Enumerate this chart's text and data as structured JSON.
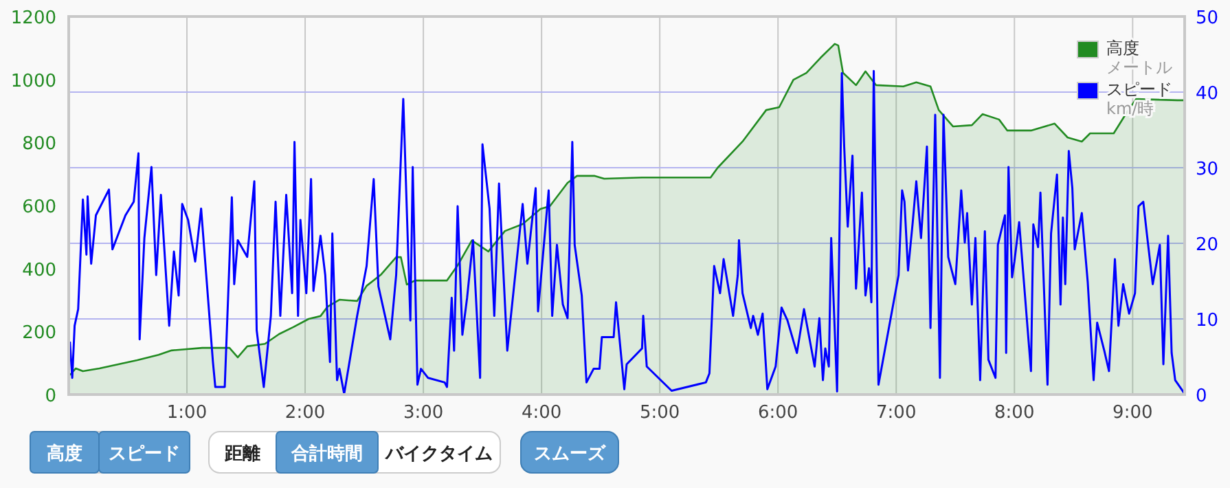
{
  "chart_data": {
    "type": "line",
    "xlim": [
      0,
      9.44
    ],
    "ylim": [
      0,
      1200
    ],
    "y2lim": [
      0,
      50
    ],
    "xticks": [
      {
        "value": 1,
        "label": "1:00"
      },
      {
        "value": 2,
        "label": "2:00"
      },
      {
        "value": 3,
        "label": "3:00"
      },
      {
        "value": 4,
        "label": "4:00"
      },
      {
        "value": 5,
        "label": "5:00"
      },
      {
        "value": 6,
        "label": "6:00"
      },
      {
        "value": 7,
        "label": "7:00"
      },
      {
        "value": 8,
        "label": "8:00"
      },
      {
        "value": 9,
        "label": "9:00"
      }
    ],
    "yticks": [
      0,
      200,
      400,
      600,
      800,
      1000,
      1200
    ],
    "y2ticks": [
      0,
      10,
      20,
      30,
      40,
      50
    ],
    "grid": true,
    "legend": "top right",
    "annotations": [
      "高度",
      "スピード",
      "距離",
      "合計時間",
      "バイクタイム",
      "スムーズ"
    ],
    "series": [
      {
        "name": "高度メートル",
        "type": "area",
        "color": "#228b22",
        "x": [
          0.01,
          0.06,
          0.12,
          0.26,
          0.58,
          0.76,
          0.87,
          1.13,
          1.36,
          1.43,
          1.51,
          1.66,
          1.78,
          1.9,
          2.03,
          2.13,
          2.19,
          2.29,
          2.44,
          2.52,
          2.64,
          2.77,
          2.81,
          2.86,
          2.93,
          3.2,
          3.29,
          3.41,
          3.55,
          3.69,
          3.84,
          3.99,
          4.07,
          4.22,
          4.3,
          4.45,
          4.53,
          4.85,
          5.43,
          5.49,
          5.7,
          5.9,
          6.01,
          6.13,
          6.24,
          6.36,
          6.48,
          6.51,
          6.55,
          6.66,
          6.74,
          6.83,
          7.06,
          7.17,
          7.29,
          7.36,
          7.48,
          7.64,
          7.73,
          7.87,
          7.94,
          8.14,
          8.34,
          8.45,
          8.57,
          8.64,
          8.84,
          8.95,
          9.03,
          9.38,
          9.44
        ],
        "values": [
          62,
          83,
          74,
          83,
          109,
          126,
          140,
          148,
          148,
          118,
          153,
          161,
          192,
          214,
          240,
          249,
          279,
          301,
          297,
          345,
          380,
          436,
          436,
          349,
          362,
          362,
          410,
          489,
          454,
          519,
          541,
          589,
          598,
          672,
          694,
          694,
          685,
          689,
          689,
          720,
          803,
          903,
          912,
          999,
          1021,
          1069,
          1113,
          1108,
          1021,
          982,
          1026,
          982,
          978,
          991,
          978,
          903,
          851,
          855,
          890,
          873,
          838,
          838,
          860,
          816,
          803,
          829,
          829,
          895,
          938,
          934,
          934
        ]
      },
      {
        "name": "スピードkm/時",
        "axis": "y2",
        "color": "#0000ff",
        "x": [
          0.01,
          0.03,
          0.05,
          0.08,
          0.12,
          0.15,
          0.16,
          0.19,
          0.23,
          0.34,
          0.37,
          0.48,
          0.55,
          0.59,
          0.6,
          0.64,
          0.7,
          0.74,
          0.78,
          0.85,
          0.89,
          0.93,
          0.96,
          1.01,
          1.07,
          1.12,
          1.22,
          1.24,
          1.32,
          1.38,
          1.4,
          1.43,
          1.51,
          1.57,
          1.59,
          1.65,
          1.71,
          1.75,
          1.79,
          1.84,
          1.89,
          1.91,
          1.94,
          1.96,
          2.01,
          2.05,
          2.07,
          2.13,
          2.17,
          2.21,
          2.23,
          2.27,
          2.29,
          2.33,
          2.44,
          2.52,
          2.58,
          2.62,
          2.72,
          2.77,
          2.83,
          2.89,
          2.91,
          2.95,
          2.98,
          3.04,
          3.18,
          3.2,
          3.24,
          3.26,
          3.29,
          3.33,
          3.37,
          3.42,
          3.48,
          3.5,
          3.56,
          3.6,
          3.64,
          3.71,
          3.84,
          3.88,
          3.95,
          3.97,
          4.06,
          4.09,
          4.13,
          4.18,
          4.22,
          4.26,
          4.28,
          4.34,
          4.38,
          4.44,
          4.49,
          4.51,
          4.61,
          4.63,
          4.7,
          4.72,
          4.85,
          4.86,
          4.89,
          5.1,
          5.39,
          5.42,
          5.46,
          5.51,
          5.54,
          5.62,
          5.66,
          5.67,
          5.7,
          5.77,
          5.79,
          5.83,
          5.87,
          5.91,
          5.98,
          6.03,
          6.08,
          6.16,
          6.22,
          6.31,
          6.35,
          6.38,
          6.4,
          6.43,
          6.45,
          6.5,
          6.54,
          6.56,
          6.59,
          6.63,
          6.66,
          6.71,
          6.74,
          6.77,
          6.79,
          6.81,
          6.85,
          7.02,
          7.05,
          7.07,
          7.1,
          7.14,
          7.17,
          7.21,
          7.26,
          7.29,
          7.33,
          7.37,
          7.4,
          7.44,
          7.5,
          7.55,
          7.58,
          7.6,
          7.64,
          7.67,
          7.71,
          7.75,
          7.78,
          7.84,
          7.86,
          7.92,
          7.93,
          7.95,
          7.98,
          8.0,
          8.04,
          8.14,
          8.16,
          8.2,
          8.22,
          8.28,
          8.31,
          8.36,
          8.39,
          8.41,
          8.43,
          8.46,
          8.49,
          8.51,
          8.57,
          8.62,
          8.67,
          8.7,
          8.76,
          8.8,
          8.85,
          8.88,
          8.92,
          8.97,
          9.02,
          9.05,
          9.09,
          9.12,
          9.17,
          9.23,
          9.26,
          9.3,
          9.33,
          9.36,
          9.44
        ],
        "values": [
          7.0,
          2.2,
          9.1,
          11.3,
          25.8,
          18.5,
          26.2,
          17.3,
          23.7,
          27.1,
          19.2,
          23.7,
          25.5,
          31.9,
          7.3,
          20.7,
          30.1,
          15.8,
          26.4,
          9.1,
          18.9,
          13.1,
          25.2,
          23.1,
          17.6,
          24.6,
          4.3,
          1.0,
          1.0,
          26.1,
          14.6,
          20.4,
          18.2,
          28.2,
          8.5,
          1.0,
          10.4,
          25.5,
          10.4,
          26.4,
          13.4,
          33.4,
          10.4,
          23.1,
          13.4,
          28.5,
          13.7,
          21.0,
          15.8,
          4.3,
          21.3,
          1.9,
          3.4,
          0.1,
          10.4,
          17.0,
          28.5,
          14.3,
          7.3,
          15.8,
          39.1,
          9.8,
          30.1,
          1.3,
          3.4,
          2.2,
          1.6,
          1.0,
          12.8,
          5.8,
          24.9,
          7.9,
          12.8,
          20.4,
          2.2,
          33.1,
          24.6,
          10.4,
          27.9,
          5.8,
          25.2,
          17.3,
          27.3,
          11.0,
          27.0,
          10.4,
          19.8,
          11.9,
          10.1,
          33.4,
          19.8,
          13.1,
          1.6,
          3.4,
          3.4,
          7.6,
          7.6,
          12.2,
          0.7,
          4.0,
          6.1,
          10.4,
          3.7,
          0.5,
          1.6,
          2.8,
          17.0,
          13.4,
          17.9,
          10.4,
          15.8,
          20.4,
          13.4,
          8.8,
          10.4,
          7.9,
          10.7,
          0.7,
          3.7,
          11.5,
          9.8,
          5.5,
          11.3,
          3.7,
          10.1,
          1.9,
          6.1,
          3.7,
          20.7,
          0.4,
          42.5,
          32.8,
          22.2,
          31.6,
          14.0,
          26.7,
          13.1,
          16.7,
          12.2,
          42.8,
          1.3,
          15.8,
          27.0,
          25.5,
          16.4,
          22.8,
          28.2,
          20.7,
          32.8,
          8.8,
          37.0,
          2.2,
          37.0,
          18.2,
          14.6,
          27.0,
          20.1,
          24.0,
          11.9,
          20.7,
          1.9,
          21.6,
          4.6,
          2.2,
          19.8,
          23.7,
          5.5,
          30.1,
          15.5,
          17.6,
          22.8,
          3.1,
          22.5,
          19.5,
          26.7,
          1.3,
          21.3,
          29.1,
          11.9,
          23.4,
          14.6,
          32.2,
          27.3,
          19.2,
          24.0,
          14.9,
          1.9,
          9.5,
          5.8,
          3.1,
          17.9,
          9.1,
          14.6,
          10.7,
          13.4,
          24.9,
          25.5,
          21.3,
          14.6,
          19.8,
          4.0,
          21.0,
          5.5,
          1.9,
          0.1
        ]
      }
    ]
  }
}
